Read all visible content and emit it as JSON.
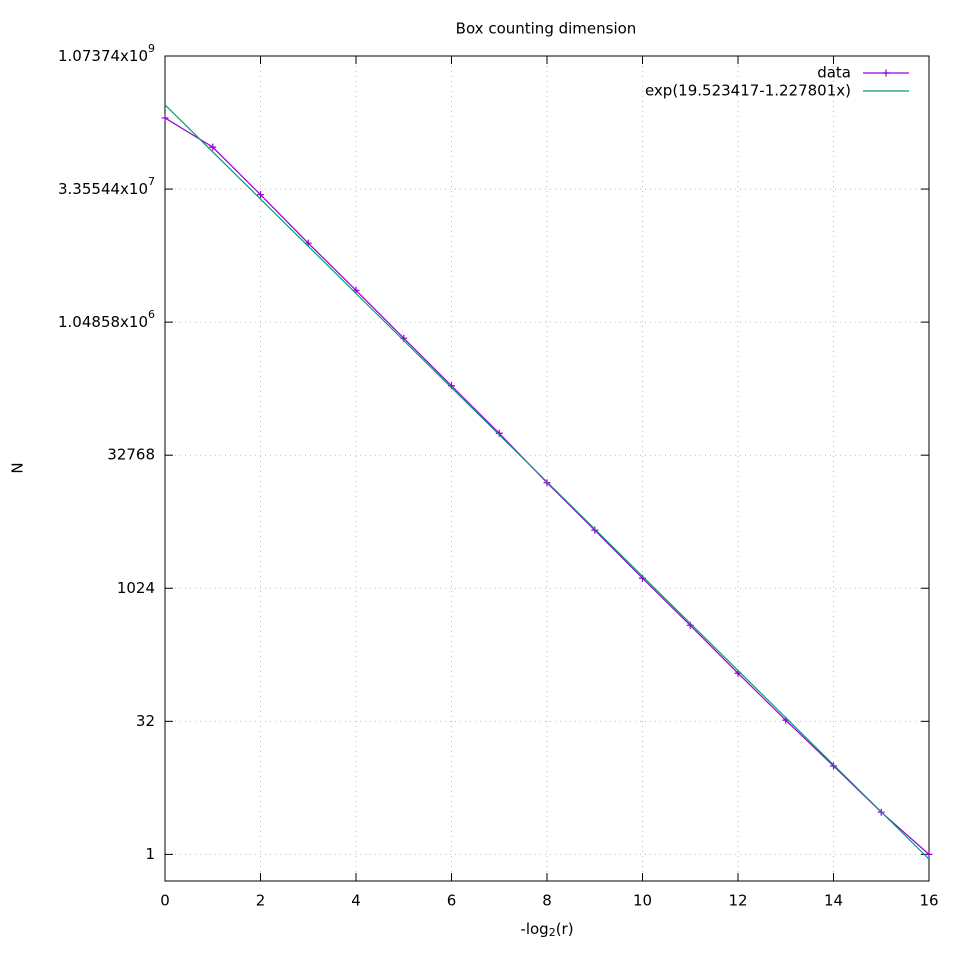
{
  "chart_data": {
    "type": "line",
    "title": "Box counting dimension",
    "xlabel": "-log_2(r)",
    "ylabel": "N",
    "log_y": true,
    "log_base": 2,
    "grid": true,
    "legend": "top-right",
    "xlim": [
      0,
      16
    ],
    "xticks": [
      0,
      2,
      4,
      6,
      8,
      10,
      12,
      14,
      16
    ],
    "ylim": [
      0.5,
      1073741824
    ],
    "yticks": [
      1,
      32,
      1024,
      32768,
      {
        "value": 1048576,
        "label": "1.04858x10^6"
      },
      {
        "value": 33554432,
        "label": "3.35544x10^7"
      },
      {
        "value": 1073741824,
        "label": "1.07374x10^9"
      }
    ],
    "series": [
      {
        "name": "data",
        "color": "#9400d3",
        "markers": true,
        "x": [
          0,
          1,
          2,
          3,
          4,
          5,
          6,
          7,
          8,
          9,
          10,
          11,
          12,
          13,
          14,
          15,
          16
        ],
        "values": [
          214000000,
          100000000,
          29000000,
          8200000,
          2400000,
          690000,
          200000,
          58000,
          16000,
          4650,
          1330,
          390,
          112,
          33,
          10,
          3,
          1
        ]
      },
      {
        "name": "exp(19.523417-1.227801x)",
        "color": "#009e73",
        "markers": false,
        "x": [
          0,
          16
        ],
        "values": [
          301220000,
          0.8857
        ]
      }
    ]
  }
}
